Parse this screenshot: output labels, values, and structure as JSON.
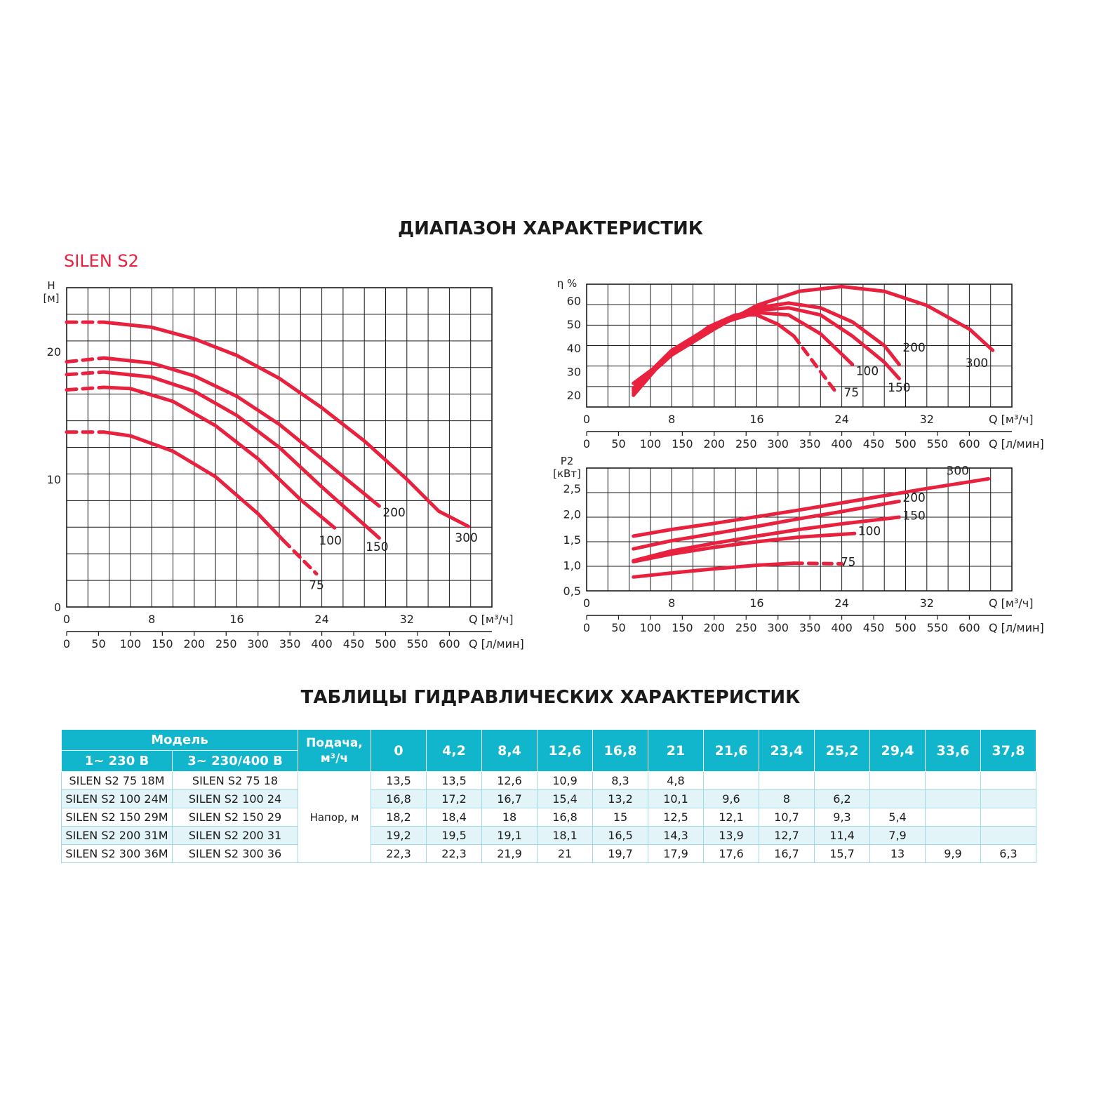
{
  "headings": {
    "main": "ДИАПАЗОН ХАРАКТЕРИСТИК",
    "table": "ТАБЛИЦЫ ГИДРАВЛИЧЕСКИХ ХАРАКТЕРИСТИК",
    "brand": "SILEN S2"
  },
  "colors": {
    "curve": "#e8213f",
    "table_header": "#12b6cc",
    "table_stripe": "#e3f4f8",
    "grid": "#1a1a1a"
  },
  "chart_data": [
    {
      "id": "head",
      "type": "line",
      "ylabel_line1": "H",
      "ylabel_line2": "[м]",
      "xlabel": "Q [м³/ч]",
      "x2label": "Q [л/мин]",
      "xlim": [
        0,
        40
      ],
      "ylim": [
        0,
        25
      ],
      "xticks": [
        0,
        8,
        16,
        24,
        32
      ],
      "yticks": [
        0,
        10,
        20
      ],
      "x2ticks": [
        0,
        50,
        100,
        150,
        200,
        250,
        300,
        350,
        400,
        450,
        500,
        550,
        600
      ],
      "grid": true,
      "series": [
        {
          "name": "75",
          "label_at": [
            23.5,
            1.4
          ],
          "dash_head": [
            [
              0,
              13.7
            ],
            [
              3.5,
              13.7
            ]
          ],
          "solid": [
            [
              3.5,
              13.7
            ],
            [
              6,
              13.4
            ],
            [
              10,
              12.2
            ],
            [
              14,
              10.2
            ],
            [
              18,
              7.3
            ],
            [
              20.4,
              5.2
            ]
          ],
          "dash_tail": [
            [
              20.4,
              5.2
            ],
            [
              23.5,
              2.6
            ]
          ]
        },
        {
          "name": "100",
          "label_at": [
            24.8,
            4.9
          ],
          "dash_head": [
            [
              0,
              17.0
            ],
            [
              3.5,
              17.2
            ]
          ],
          "solid": [
            [
              3.5,
              17.2
            ],
            [
              6,
              17.1
            ],
            [
              10,
              16.1
            ],
            [
              14,
              14.2
            ],
            [
              18,
              11.6
            ],
            [
              22,
              8.4
            ],
            [
              25.2,
              6.2
            ]
          ]
        },
        {
          "name": "150",
          "label_at": [
            29.2,
            4.4
          ],
          "dash_head": [
            [
              0,
              18.2
            ],
            [
              3.5,
              18.4
            ]
          ],
          "solid": [
            [
              3.5,
              18.4
            ],
            [
              8,
              18.0
            ],
            [
              12,
              16.9
            ],
            [
              16,
              15.0
            ],
            [
              20,
              12.5
            ],
            [
              24,
              9.4
            ],
            [
              29.4,
              5.4
            ]
          ]
        },
        {
          "name": "200",
          "label_at": [
            30.8,
            7.1
          ],
          "dash_head": [
            [
              0,
              19.2
            ],
            [
              3.5,
              19.5
            ]
          ],
          "solid": [
            [
              3.5,
              19.5
            ],
            [
              8,
              19.1
            ],
            [
              12,
              18.1
            ],
            [
              16,
              16.5
            ],
            [
              20,
              14.3
            ],
            [
              24,
              11.6
            ],
            [
              29.4,
              7.9
            ]
          ]
        },
        {
          "name": "300",
          "label_at": [
            37.6,
            5.1
          ],
          "dash_head": [
            [
              0,
              22.3
            ],
            [
              3.5,
              22.3
            ]
          ],
          "solid": [
            [
              3.5,
              22.3
            ],
            [
              8,
              21.9
            ],
            [
              12,
              21.0
            ],
            [
              16,
              19.7
            ],
            [
              20,
              17.9
            ],
            [
              24,
              15.6
            ],
            [
              28,
              13.0
            ],
            [
              32,
              10.0
            ],
            [
              35,
              7.5
            ],
            [
              37.8,
              6.3
            ]
          ]
        }
      ]
    },
    {
      "id": "efficiency",
      "type": "line",
      "ylabel_line1": "η %",
      "xlabel": "Q [м³/ч]",
      "x2label": "Q [л/мин]",
      "xlim": [
        0,
        40
      ],
      "ylim": [
        15,
        67
      ],
      "xticks": [
        0,
        8,
        16,
        24,
        32
      ],
      "yticks": [
        20,
        30,
        40,
        50,
        60
      ],
      "x2ticks": [
        0,
        50,
        100,
        150,
        200,
        250,
        300,
        350,
        400,
        450,
        500,
        550,
        600
      ],
      "grid": true,
      "series": [
        {
          "name": "75",
          "label_at": [
            24.9,
            19.5
          ],
          "solid": [
            [
              4.4,
              20
            ],
            [
              6.5,
              31
            ],
            [
              9,
              41
            ],
            [
              11.5,
              49
            ],
            [
              14,
              54
            ],
            [
              16,
              54
            ],
            [
              18,
              50
            ],
            [
              19.5,
              45
            ]
          ],
          "dash_tail": [
            [
              19.5,
              45
            ],
            [
              21.5,
              33
            ],
            [
              23.5,
              21
            ]
          ]
        },
        {
          "name": "100",
          "label_at": [
            26.4,
            28.5
          ],
          "solid": [
            [
              4.4,
              21
            ],
            [
              7,
              34
            ],
            [
              10,
              44
            ],
            [
              13,
              51
            ],
            [
              16,
              55
            ],
            [
              19,
              54
            ],
            [
              22,
              46
            ],
            [
              25,
              33
            ]
          ]
        },
        {
          "name": "150",
          "label_at": [
            29.4,
            21.5
          ],
          "solid": [
            [
              4.4,
              22
            ],
            [
              8,
              38
            ],
            [
              12,
              49
            ],
            [
              16,
              56
            ],
            [
              19,
              57
            ],
            [
              22,
              54
            ],
            [
              25,
              45
            ],
            [
              28,
              34
            ],
            [
              29.4,
              27
            ]
          ]
        },
        {
          "name": "200",
          "label_at": [
            30.8,
            38.5
          ],
          "solid": [
            [
              4.4,
              23
            ],
            [
              8,
              39
            ],
            [
              12,
              50
            ],
            [
              16,
              57
            ],
            [
              19,
              59
            ],
            [
              22,
              57
            ],
            [
              25,
              51
            ],
            [
              28,
              41
            ],
            [
              29.4,
              33
            ]
          ]
        },
        {
          "name": "300",
          "label_at": [
            36.7,
            32
          ],
          "solid": [
            [
              4.4,
              25
            ],
            [
              8,
              37
            ],
            [
              12,
              48
            ],
            [
              16,
              58
            ],
            [
              20,
              64
            ],
            [
              24,
              66
            ],
            [
              28,
              64
            ],
            [
              32,
              58
            ],
            [
              36,
              48
            ],
            [
              38.2,
              39
            ]
          ]
        }
      ]
    },
    {
      "id": "power",
      "type": "line",
      "ylabel_line1": "P2",
      "ylabel_line2": "[кВт]",
      "xlabel": "Q [м³/ч]",
      "x2label": "Q [л/мин]",
      "xlim": [
        0,
        40
      ],
      "ylim": [
        0.5,
        2.9
      ],
      "xticks": [
        0,
        8,
        16,
        24,
        32
      ],
      "yticks": [
        0.5,
        1.0,
        1.5,
        2.0,
        2.5
      ],
      "yticklabels": [
        "0,5",
        "1,0",
        "1,5",
        "2,0",
        "2,5"
      ],
      "x2ticks": [
        0,
        50,
        100,
        150,
        200,
        250,
        300,
        350,
        400,
        450,
        500,
        550,
        600
      ],
      "grid": true,
      "series": [
        {
          "name": "75",
          "label_at": [
            24.6,
            0.99
          ],
          "solid": [
            [
              4.4,
              0.77
            ],
            [
              8,
              0.85
            ],
            [
              12,
              0.93
            ],
            [
              16,
              1.0
            ],
            [
              19.5,
              1.04
            ]
          ],
          "dash_tail": [
            [
              19.5,
              1.04
            ],
            [
              24,
              1.03
            ]
          ]
        },
        {
          "name": "100",
          "label_at": [
            26.6,
            1.59
          ],
          "solid": [
            [
              4.4,
              1.07
            ],
            [
              8,
              1.22
            ],
            [
              12,
              1.35
            ],
            [
              16,
              1.46
            ],
            [
              20,
              1.55
            ],
            [
              25.2,
              1.62
            ]
          ]
        },
        {
          "name": "150",
          "label_at": [
            30.8,
            1.89
          ],
          "solid": [
            [
              4.4,
              1.09
            ],
            [
              8,
              1.28
            ],
            [
              12,
              1.43
            ],
            [
              16,
              1.57
            ],
            [
              20,
              1.7
            ],
            [
              24,
              1.81
            ],
            [
              29.4,
              1.94
            ]
          ]
        },
        {
          "name": "200",
          "label_at": [
            30.8,
            2.24
          ],
          "solid": [
            [
              4.4,
              1.32
            ],
            [
              8,
              1.48
            ],
            [
              12,
              1.62
            ],
            [
              16,
              1.76
            ],
            [
              20,
              1.91
            ],
            [
              24,
              2.05
            ],
            [
              29.4,
              2.25
            ]
          ]
        },
        {
          "name": "300",
          "label_at": [
            34.9,
            2.77
          ],
          "solid": [
            [
              4.4,
              1.57
            ],
            [
              8,
              1.7
            ],
            [
              12,
              1.82
            ],
            [
              16,
              1.95
            ],
            [
              20,
              2.08
            ],
            [
              24,
              2.22
            ],
            [
              28,
              2.36
            ],
            [
              32,
              2.5
            ],
            [
              36,
              2.63
            ],
            [
              37.8,
              2.69
            ]
          ]
        }
      ]
    }
  ],
  "table": {
    "header": {
      "model": "Модель",
      "single_phase": "1~ 230 В",
      "three_phase": "3~ 230/400 В",
      "flow_line1": "Подача,",
      "flow_line2": "м³/ч",
      "flows": [
        "0",
        "4,2",
        "8,4",
        "12,6",
        "16,8",
        "21",
        "21,6",
        "23,4",
        "25,2",
        "29,4",
        "33,6",
        "37,8"
      ]
    },
    "head_label": "Напор, м",
    "rows": [
      {
        "m1": "SILEN S2 75 18M",
        "m3": "SILEN S2 75 18",
        "values": [
          "13,5",
          "13,5",
          "12,6",
          "10,9",
          "8,3",
          "4,8",
          "",
          "",
          "",
          "",
          "",
          ""
        ]
      },
      {
        "m1": "SILEN S2 100 24M",
        "m3": "SILEN S2 100 24",
        "values": [
          "16,8",
          "17,2",
          "16,7",
          "15,4",
          "13,2",
          "10,1",
          "9,6",
          "8",
          "6,2",
          "",
          "",
          ""
        ]
      },
      {
        "m1": "SILEN S2 150 29M",
        "m3": "SILEN S2 150 29",
        "values": [
          "18,2",
          "18,4",
          "18",
          "16,8",
          "15",
          "12,5",
          "12,1",
          "10,7",
          "9,3",
          "5,4",
          "",
          ""
        ]
      },
      {
        "m1": "SILEN S2 200 31M",
        "m3": "SILEN S2 200 31",
        "values": [
          "19,2",
          "19,5",
          "19,1",
          "18,1",
          "16,5",
          "14,3",
          "13,9",
          "12,7",
          "11,4",
          "7,9",
          "",
          ""
        ]
      },
      {
        "m1": "SILEN S2 300 36M",
        "m3": "SILEN S2 300 36",
        "values": [
          "22,3",
          "22,3",
          "21,9",
          "21",
          "19,7",
          "17,9",
          "17,6",
          "16,7",
          "15,7",
          "13",
          "9,9",
          "6,3"
        ]
      }
    ]
  }
}
